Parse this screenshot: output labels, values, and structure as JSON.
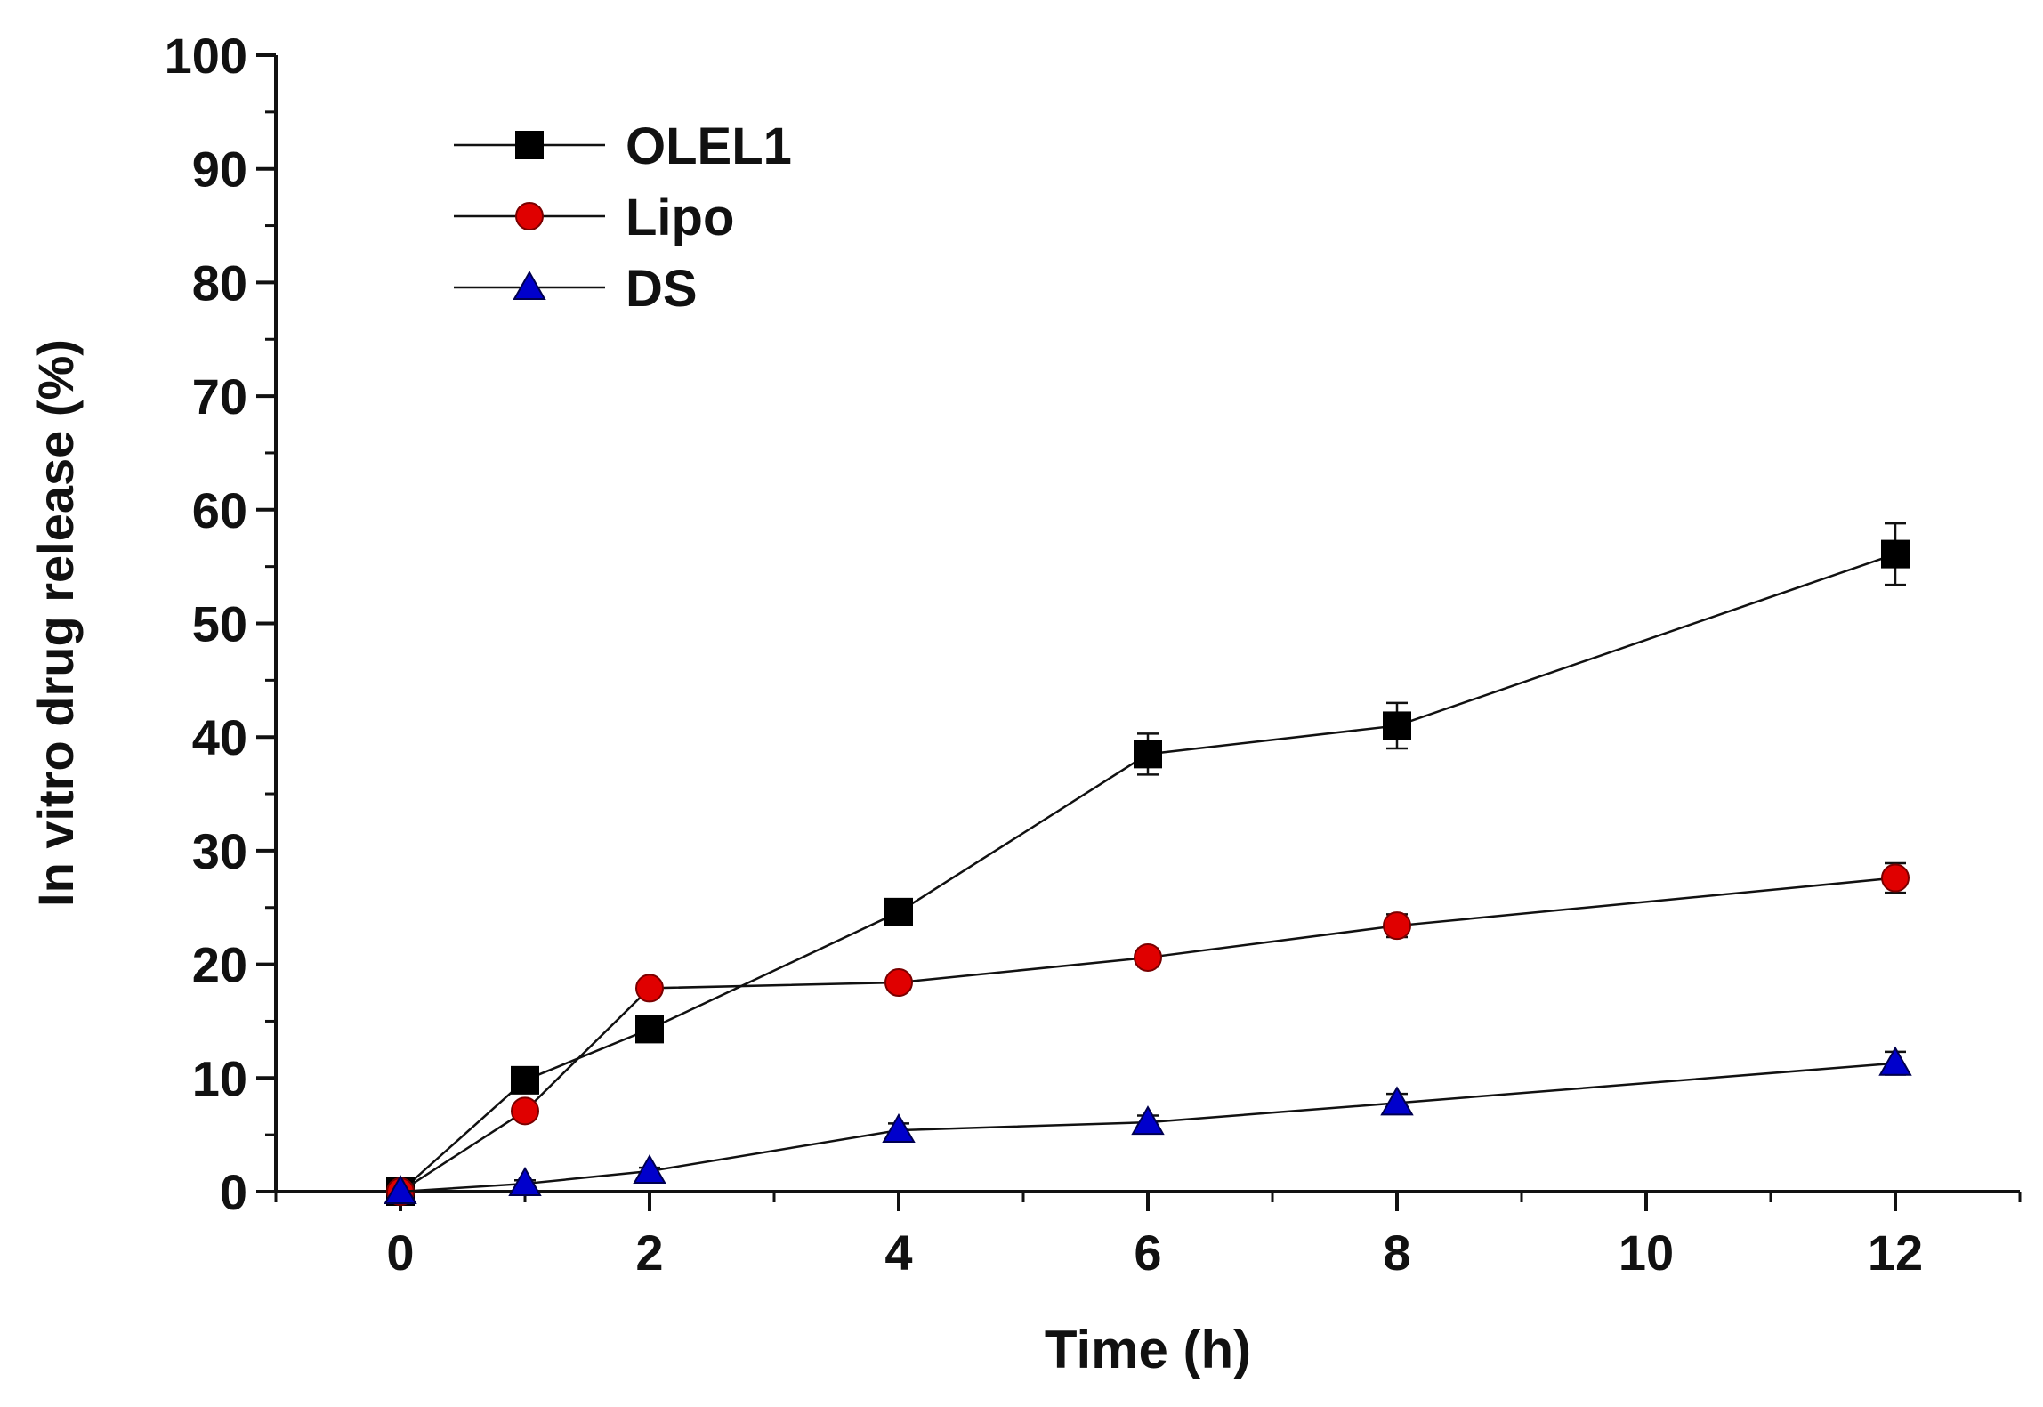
{
  "chart_data": {
    "type": "line",
    "title": "",
    "xlabel": "Time (h)",
    "ylabel": "In vitro drug release (%)",
    "xlim": [
      -1,
      13
    ],
    "ylim": [
      0,
      100
    ],
    "x_ticks": [
      0,
      2,
      4,
      6,
      8,
      10,
      12
    ],
    "x_tick_labels": [
      "0",
      "2",
      "4",
      "6",
      "8",
      "10",
      "12"
    ],
    "y_ticks": [
      0,
      10,
      20,
      30,
      40,
      50,
      60,
      70,
      80,
      90,
      100
    ],
    "y_tick_labels": [
      "0",
      "10",
      "20",
      "30",
      "40",
      "50",
      "60",
      "70",
      "80",
      "90",
      "100"
    ],
    "grid": false,
    "legend_position": "top-left",
    "x": [
      0,
      1,
      2,
      4,
      6,
      8,
      12
    ],
    "series": [
      {
        "name": "OLEL1",
        "marker": "square",
        "color": "#000000",
        "values": [
          0,
          9.8,
          14.3,
          24.6,
          38.5,
          41.0,
          56.1
        ],
        "errors": [
          0,
          0.5,
          0.6,
          0.9,
          1.8,
          2.0,
          2.7
        ]
      },
      {
        "name": "Lipo",
        "marker": "circle",
        "color": "#e00000",
        "values": [
          0,
          7.1,
          17.9,
          18.4,
          20.6,
          23.4,
          27.6
        ],
        "errors": [
          0,
          0.4,
          0.5,
          0.5,
          0.8,
          1.0,
          1.3
        ]
      },
      {
        "name": "DS",
        "marker": "triangle",
        "color": "#0000cc",
        "values": [
          0,
          0.7,
          1.8,
          5.4,
          6.1,
          7.8,
          11.3
        ],
        "errors": [
          0,
          0.3,
          0.3,
          0.6,
          0.6,
          0.8,
          1.0
        ]
      }
    ]
  }
}
